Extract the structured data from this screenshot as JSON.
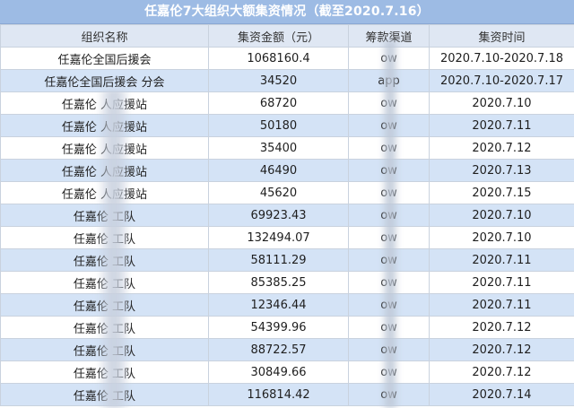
{
  "title": "任嘉伦7大组织大额集资情况（截至2020.7.16）",
  "headers": [
    "组织名称",
    "集资金额（元）",
    "筹款渠道",
    "集资时间"
  ],
  "rows": [
    {
      "name": "任嘉伦全国后援会",
      "amount": "1068160.4",
      "channel": "ow",
      "time": "2020.7.10-2020.7.18"
    },
    {
      "name": "任嘉伦全国后援会  分会",
      "amount": "34520",
      "channel": "   app",
      "time": "2020.7.10-2020.7.17"
    },
    {
      "name": "任嘉伦    人应援站",
      "amount": "68720",
      "channel": "ow",
      "time": "2020.7.10"
    },
    {
      "name": "任嘉伦    人应援站",
      "amount": "50180",
      "channel": "ow",
      "time": "2020.7.11"
    },
    {
      "name": "任嘉伦    人应援站",
      "amount": "35400",
      "channel": "ow",
      "time": "2020.7.12"
    },
    {
      "name": "任嘉伦    人应援站",
      "amount": "46490",
      "channel": "ow",
      "time": "2020.7.13"
    },
    {
      "name": "任嘉伦    人应援站",
      "amount": "45620",
      "channel": "ow",
      "time": "2020.7.15"
    },
    {
      "name": "任嘉伦    工队",
      "amount": "69923.43",
      "channel": "ow",
      "time": "2020.7.10"
    },
    {
      "name": "任嘉伦    工队",
      "amount": "132494.07",
      "channel": "ow",
      "time": "2020.7.10"
    },
    {
      "name": "任嘉伦    工队",
      "amount": "58111.29",
      "channel": "ow",
      "time": "2020.7.11"
    },
    {
      "name": "任嘉伦    工队",
      "amount": "85385.25",
      "channel": "ow",
      "time": "2020.7.11"
    },
    {
      "name": "任嘉伦    工队",
      "amount": "12346.44",
      "channel": "ow",
      "time": "2020.7.11"
    },
    {
      "name": "任嘉伦    工队",
      "amount": "54399.96",
      "channel": "ow",
      "time": "2020.7.12"
    },
    {
      "name": "任嘉伦    工队",
      "amount": "88722.57",
      "channel": "ow",
      "time": "2020.7.12"
    },
    {
      "name": "任嘉伦    工队",
      "amount": "30849.66",
      "channel": "ow",
      "time": "2020.7.12"
    },
    {
      "name": "任嘉伦    工队",
      "amount": "116814.42",
      "channel": "ow",
      "time": "2020.7.14"
    }
  ]
}
